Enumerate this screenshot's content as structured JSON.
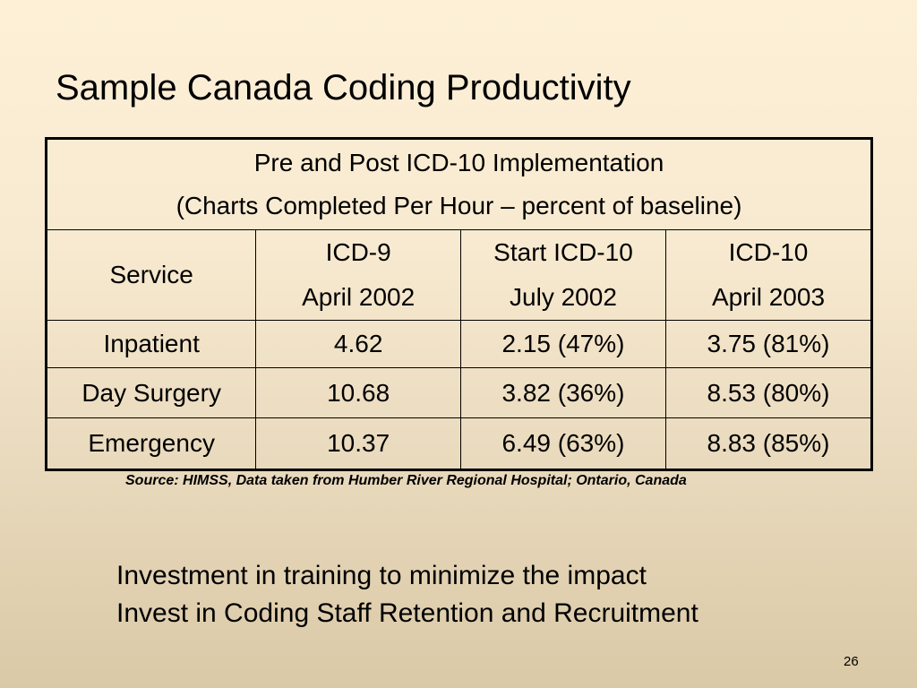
{
  "slide": {
    "title": "Sample Canada Coding Productivity",
    "page_number": "26"
  },
  "table": {
    "caption_line1": "Pre and Post ICD-10 Implementation",
    "caption_line2": "(Charts Completed Per Hour – percent of baseline)",
    "headers": [
      {
        "line1": "Service",
        "line2": ""
      },
      {
        "line1": "ICD-9",
        "line2": "April 2002"
      },
      {
        "line1": "Start ICD-10",
        "line2": "July 2002"
      },
      {
        "line1": "ICD-10",
        "line2": "April 2003"
      }
    ],
    "rows": [
      {
        "service": "Inpatient",
        "icd9": "4.62",
        "start_icd10": "2.15 (47%)",
        "icd10": "3.75 (81%)"
      },
      {
        "service": "Day Surgery",
        "icd9": "10.68",
        "start_icd10": "3.82 (36%)",
        "icd10": "8.53 (80%)"
      },
      {
        "service": "Emergency",
        "icd9": "10.37",
        "start_icd10": "6.49 (63%)",
        "icd10": "8.83 (85%)"
      }
    ]
  },
  "source_note": "Source: HIMSS, Data taken from Humber River Regional Hospital; Ontario, Canada",
  "bullets": [
    "Investment in training to minimize the impact",
    "Invest in Coding Staff Retention and Recruitment"
  ]
}
